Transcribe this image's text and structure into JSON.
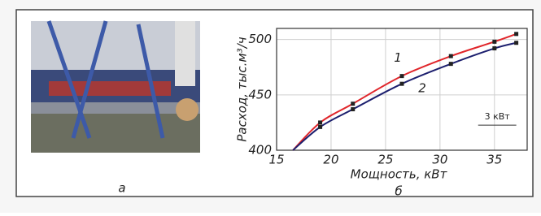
{
  "photo": {
    "label": "а"
  },
  "chart_data": {
    "type": "line",
    "panel_label": "б",
    "xlabel": "Мощность, кВт",
    "ylabel": "Расход, тыс.м³/ч",
    "x": [
      16.5,
      19,
      22,
      26.5,
      31,
      35,
      37
    ],
    "series": [
      {
        "name": "1",
        "color": "#e0262b",
        "values": [
          400,
          425,
          442,
          467,
          485,
          498,
          505
        ]
      },
      {
        "name": "2",
        "color": "#1c1f6e",
        "values": [
          400,
          421,
          437,
          460,
          478,
          492,
          497
        ]
      }
    ],
    "xlim": [
      15,
      38
    ],
    "ylim": [
      400,
      510
    ],
    "xticks": [
      15,
      20,
      25,
      30,
      35
    ],
    "yticks": [
      400,
      450,
      500
    ],
    "grid": true,
    "annotation": "3 кВт"
  }
}
